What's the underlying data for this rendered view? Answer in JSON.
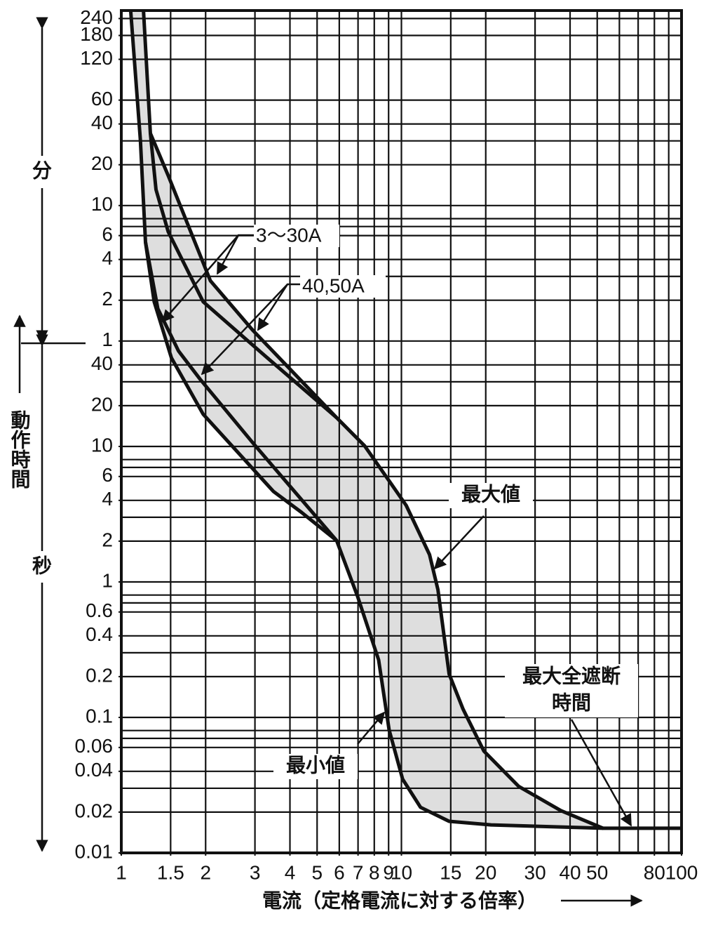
{
  "chart_data": {
    "type": "line",
    "xscale": "log",
    "yscale": "log",
    "xlim": [
      1,
      100
    ],
    "ylim": [
      0.01,
      16500
    ],
    "xticks": [
      1,
      1.5,
      2,
      3,
      4,
      5,
      6,
      7,
      8,
      9,
      10,
      15,
      20,
      30,
      40,
      50,
      80,
      100
    ],
    "xgrid": [
      1.5,
      2,
      3,
      4,
      5,
      6,
      7,
      8,
      9,
      10,
      15,
      20,
      30,
      40,
      50,
      60,
      70,
      80,
      90
    ],
    "yticks": [
      0.01,
      0.02,
      0.04,
      0.06,
      0.1,
      0.2,
      0.4,
      0.6,
      1,
      2,
      4,
      6,
      10,
      20,
      40,
      {
        "value": 60,
        "label": "1"
      },
      {
        "value": 120,
        "label": "2"
      },
      {
        "value": 240,
        "label": "4"
      },
      {
        "value": 360,
        "label": "6"
      },
      {
        "value": 600,
        "label": "10"
      },
      {
        "value": 1200,
        "label": "20"
      },
      {
        "value": 2400,
        "label": "40"
      },
      {
        "value": 3600,
        "label": "60"
      },
      {
        "value": 7200,
        "label": "120"
      },
      {
        "value": 10800,
        "label": "180"
      },
      {
        "value": 14400,
        "label": "240"
      }
    ],
    "ygrid": [
      0.02,
      0.03,
      0.04,
      0.06,
      0.07,
      0.08,
      0.1,
      0.2,
      0.3,
      0.4,
      0.6,
      0.7,
      0.8,
      1,
      2,
      3,
      4,
      6,
      7,
      8,
      10,
      20,
      30,
      40,
      60,
      120,
      180,
      240,
      360,
      420,
      480,
      600,
      1200,
      1800,
      2400,
      3600,
      7200,
      10800,
      14400
    ],
    "x_label": "電流（定格電流に対する倍率）",
    "y_label": "動作時間",
    "y_upper_label": "分",
    "y_lower_label": "秒",
    "band_color": "#dedede",
    "series": [
      {
        "color": "#111111",
        "x": [
          1.2,
          1.27,
          1.47,
          2.08,
          2.94,
          5.87,
          7.39,
          9.04,
          10.4,
          12.6,
          13.5,
          14.8,
          16.6,
          19.7,
          26.2,
          37.1,
          52.5,
          100
        ],
        "values": [
          16500,
          2046,
          1000,
          167,
          72.4,
          16.3,
          10.1,
          5.57,
          3.67,
          1.59,
          0.877,
          0.209,
          0.115,
          0.0564,
          0.031,
          0.0205,
          0.0152,
          0.0152
        ]
      },
      {
        "color": "#111111",
        "x": [
          1.27,
          1.33,
          1.47,
          1.96,
          3.11,
          5.87
        ],
        "values": [
          2046,
          787,
          385,
          117,
          50.7,
          16.3
        ]
      },
      {
        "color": "#111111",
        "x": [
          1.08,
          1.17,
          1.22,
          1.31,
          1.51,
          1.96,
          3.49,
          4.4,
          5.87,
          6.98,
          8.29,
          9.04,
          10.1,
          11.7,
          14.8,
          20.9,
          52.5
        ],
        "values": [
          16500,
          1816,
          322,
          117,
          45.0,
          17.3,
          4.66,
          3.26,
          2.02,
          0.778,
          0.266,
          0.0807,
          0.035,
          0.0217,
          0.0171,
          0.0161,
          0.0152
        ]
      },
      {
        "color": "#111111",
        "x": [
          1.22,
          1.35,
          1.6,
          1.91,
          2.94,
          4.15,
          5.87
        ],
        "values": [
          322,
          104,
          50.7,
          31.4,
          10.7,
          4.66,
          2.02
        ]
      }
    ],
    "annotations": [
      "3〜30A",
      "40,50A",
      "最大値",
      "最小値",
      "最大全遮断",
      "時間"
    ]
  }
}
